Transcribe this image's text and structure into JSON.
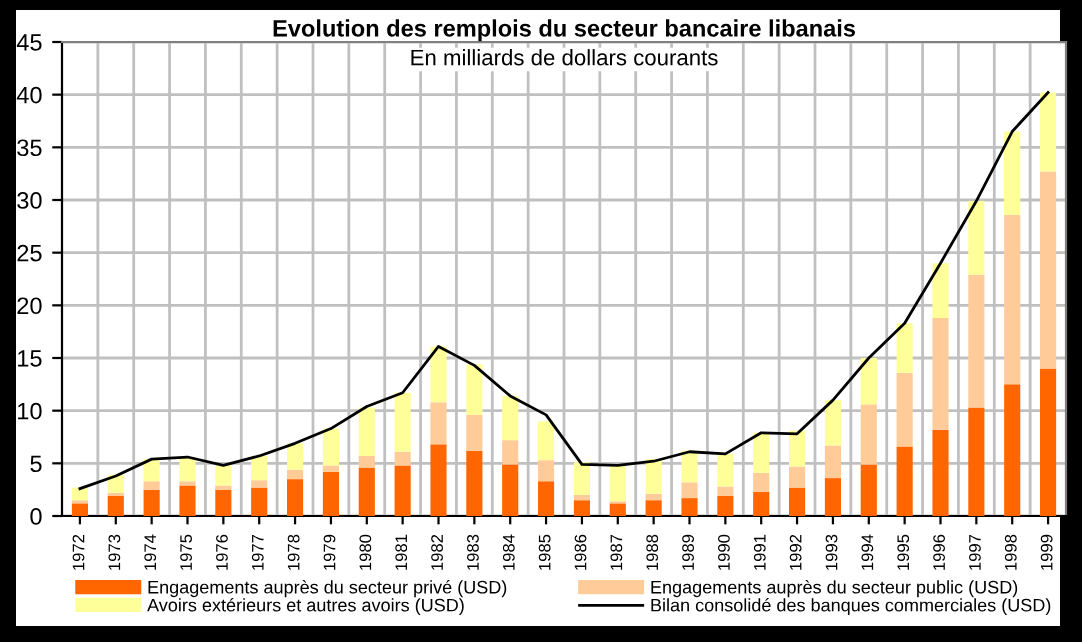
{
  "chart_data": {
    "type": "bar",
    "stacked": true,
    "title": "Evolution des remplois du secteur bancaire libanais",
    "subtitle": "En milliards de dollars courants",
    "categories": [
      "1972",
      "1973",
      "1974",
      "1975",
      "1976",
      "1977",
      "1978",
      "1979",
      "1980",
      "1981",
      "1982",
      "1983",
      "1984",
      "1985",
      "1986",
      "1987",
      "1988",
      "1989",
      "1990",
      "1991",
      "1992",
      "1993",
      "1994",
      "1995",
      "1996",
      "1997",
      "1998",
      "1999"
    ],
    "series": [
      {
        "name": "Engagements auprès du secteur privé (USD)",
        "color": "#ff6600",
        "values": [
          1.2,
          1.9,
          2.5,
          2.9,
          2.5,
          2.7,
          3.5,
          4.2,
          4.6,
          4.8,
          6.8,
          6.2,
          4.9,
          3.3,
          1.5,
          1.2,
          1.5,
          1.7,
          1.9,
          2.3,
          2.7,
          3.6,
          4.9,
          6.6,
          8.2,
          10.3,
          12.5,
          14.0
        ]
      },
      {
        "name": "Engagements auprès du secteur public (USD)",
        "color": "#ffcc99",
        "values": [
          0.3,
          0.3,
          0.8,
          0.4,
          0.4,
          0.7,
          0.9,
          0.6,
          1.1,
          1.3,
          4.0,
          3.4,
          2.3,
          2.0,
          0.5,
          0.2,
          0.6,
          1.5,
          0.9,
          1.8,
          2.0,
          3.1,
          5.7,
          7.0,
          10.6,
          12.6,
          16.1,
          18.7
        ]
      },
      {
        "name": "Avoirs extérieurs et autres avoirs (USD)",
        "color": "#ffff99",
        "values": [
          1.2,
          1.7,
          2.1,
          2.3,
          1.9,
          2.3,
          2.5,
          3.5,
          4.6,
          5.6,
          5.3,
          4.8,
          4.2,
          3.7,
          3.1,
          3.4,
          3.3,
          3.0,
          3.1,
          3.8,
          3.4,
          4.3,
          4.4,
          4.7,
          5.2,
          7.0,
          7.9,
          7.5
        ]
      },
      {
        "name": "Bilan consolidé des banques commerciales (USD)",
        "type": "line",
        "color": "#000000",
        "values": [
          2.6,
          3.8,
          5.4,
          5.6,
          4.8,
          5.7,
          6.9,
          8.3,
          10.4,
          11.7,
          16.1,
          14.3,
          11.4,
          9.6,
          4.9,
          4.8,
          5.2,
          6.1,
          5.9,
          7.9,
          7.8,
          11.0,
          15.0,
          18.3,
          24.0,
          29.9,
          36.5,
          40.2
        ]
      }
    ],
    "ylim": [
      0,
      45
    ],
    "yticks": [
      0,
      5,
      10,
      15,
      20,
      25,
      30,
      35,
      40,
      45
    ],
    "grid": true,
    "legend": "bottom"
  }
}
